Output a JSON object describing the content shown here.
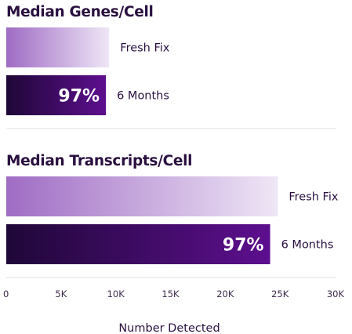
{
  "chart_data": [
    {
      "type": "bar",
      "title": "Median Genes/Cell",
      "orientation": "horizontal",
      "categories": [
        "Fresh Fix",
        "6 Months"
      ],
      "values": [
        9400,
        9100
      ],
      "data_labels": [
        "",
        "97%"
      ],
      "xlim": [
        0,
        30000
      ]
    },
    {
      "type": "bar",
      "title": "Median Transcripts/Cell",
      "orientation": "horizontal",
      "categories": [
        "Fresh Fix",
        "6 Months"
      ],
      "values": [
        24800,
        24100
      ],
      "data_labels": [
        "",
        "97%"
      ],
      "xlim": [
        0,
        30000
      ]
    }
  ],
  "axis": {
    "xlabel": "Number Detected",
    "ticks": [
      {
        "value": 0,
        "label": "0"
      },
      {
        "value": 5000,
        "label": "5K"
      },
      {
        "value": 10000,
        "label": "10K"
      },
      {
        "value": 15000,
        "label": "15K"
      },
      {
        "value": 20000,
        "label": "20K"
      },
      {
        "value": 25000,
        "label": "25K"
      },
      {
        "value": 30000,
        "label": "30K"
      }
    ]
  },
  "colors": {
    "fresh_start": "#9f6cc4",
    "fresh_end": "#efe6f6",
    "aged_start": "#1f0738",
    "aged_end": "#5d0f8e",
    "text": "#2a1040"
  }
}
